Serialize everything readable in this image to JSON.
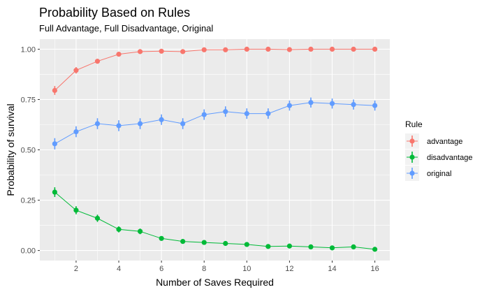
{
  "chart_data": {
    "type": "line",
    "title": "Probability Based on Rules",
    "subtitle": "Full Advantage, Full Disadvantage, Original",
    "xlabel": "Number of Saves Required",
    "ylabel": "Probability of survival",
    "x": [
      1,
      2,
      3,
      4,
      5,
      6,
      7,
      8,
      9,
      10,
      11,
      12,
      13,
      14,
      15,
      16
    ],
    "xlim": [
      0.3,
      16.7
    ],
    "ylim": [
      -0.05,
      1.05
    ],
    "x_ticks": [
      2,
      4,
      6,
      8,
      10,
      12,
      14,
      16
    ],
    "x_tick_labels": [
      "2",
      "4",
      "6",
      "8",
      "10",
      "12",
      "14",
      "16"
    ],
    "y_ticks": [
      0,
      0.25,
      0.5,
      0.75,
      1.0
    ],
    "y_tick_labels": [
      "0.00",
      "0.25",
      "0.50",
      "0.75",
      "1.00"
    ],
    "grid": true,
    "error_bars": true,
    "legend": {
      "title": "Rule",
      "position": "right"
    },
    "series": [
      {
        "name": "advantage",
        "color": "#F8766D",
        "values": [
          0.795,
          0.895,
          0.94,
          0.975,
          0.988,
          0.99,
          0.988,
          0.997,
          0.997,
          1.0,
          1.0,
          0.998,
          1.0,
          1.0,
          1.0,
          1.0
        ],
        "errors": [
          0.022,
          0.016,
          0.012,
          0.008,
          0.006,
          0.005,
          0.006,
          0.003,
          0.003,
          0.002,
          0.002,
          0.003,
          0.002,
          0.002,
          0.002,
          0.002
        ]
      },
      {
        "name": "disadvantage",
        "color": "#00BA38",
        "values": [
          0.29,
          0.2,
          0.16,
          0.105,
          0.095,
          0.06,
          0.045,
          0.04,
          0.035,
          0.03,
          0.02,
          0.022,
          0.018,
          0.013,
          0.018,
          0.006
        ],
        "errors": [
          0.024,
          0.02,
          0.018,
          0.015,
          0.014,
          0.011,
          0.01,
          0.009,
          0.009,
          0.008,
          0.007,
          0.007,
          0.006,
          0.005,
          0.006,
          0.004
        ]
      },
      {
        "name": "original",
        "color": "#619CFF",
        "values": [
          0.53,
          0.59,
          0.63,
          0.62,
          0.63,
          0.65,
          0.63,
          0.675,
          0.69,
          0.68,
          0.68,
          0.72,
          0.735,
          0.73,
          0.725,
          0.72
        ],
        "errors": [
          0.028,
          0.027,
          0.027,
          0.027,
          0.027,
          0.026,
          0.027,
          0.026,
          0.026,
          0.026,
          0.026,
          0.025,
          0.025,
          0.025,
          0.025,
          0.025
        ]
      }
    ]
  }
}
